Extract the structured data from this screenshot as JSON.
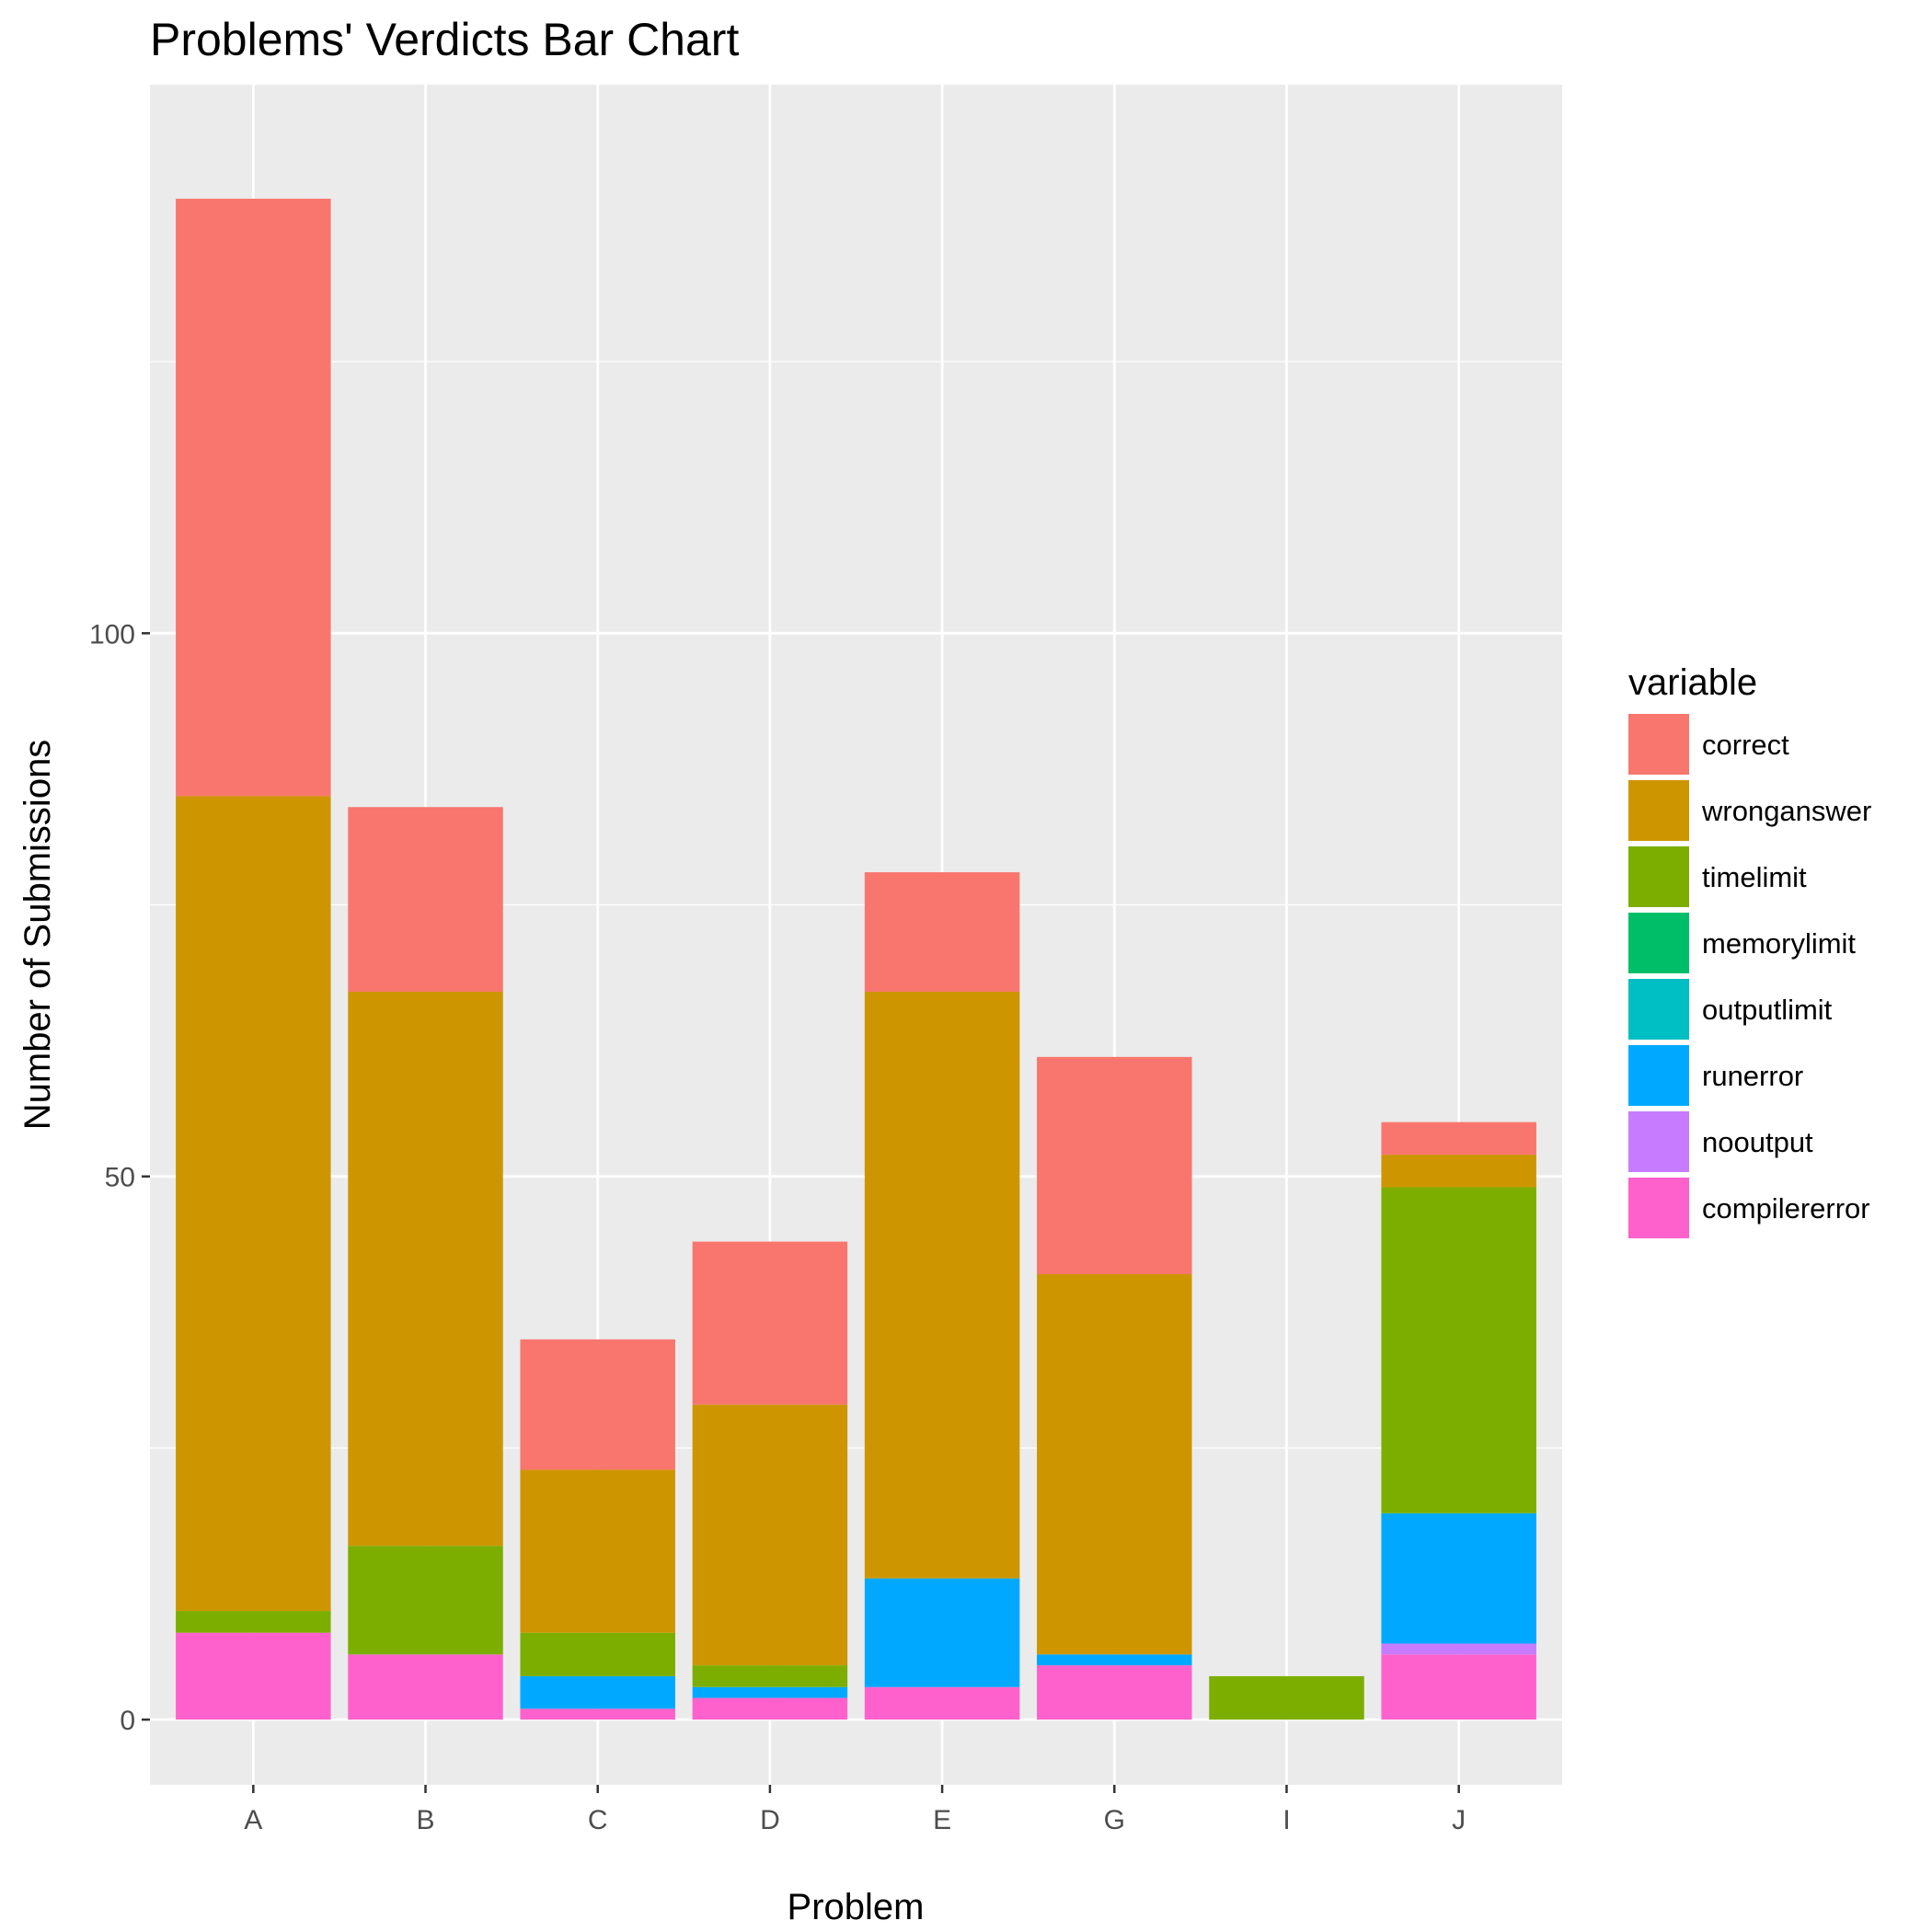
{
  "chart_data": {
    "type": "bar",
    "stacked": true,
    "title": "Problems' Verdicts Bar Chart",
    "xlabel": "Problem",
    "ylabel": "Number of Submissions",
    "categories": [
      "A",
      "B",
      "C",
      "D",
      "E",
      "G",
      "I",
      "J"
    ],
    "ylim": [
      -6,
      150.5
    ],
    "yticks": [
      0,
      50,
      100
    ],
    "yticks_labels": [
      "0",
      "50",
      "100"
    ],
    "grid": true,
    "legend": {
      "title": "variable",
      "position": "right"
    },
    "series": [
      {
        "name": "correct",
        "color": "#F8766D",
        "values": [
          55,
          17,
          12,
          15,
          11,
          20,
          0,
          3
        ]
      },
      {
        "name": "wronganswer",
        "color": "#CD9600",
        "values": [
          75,
          51,
          15,
          24,
          54,
          35,
          0,
          3
        ]
      },
      {
        "name": "timelimit",
        "color": "#7CAE00",
        "values": [
          2,
          10,
          4,
          2,
          0,
          0,
          4,
          30
        ]
      },
      {
        "name": "memorylimit",
        "color": "#00BE67",
        "values": [
          0,
          0,
          0,
          0,
          0,
          0,
          0,
          0
        ]
      },
      {
        "name": "outputlimit",
        "color": "#00BFC4",
        "values": [
          0,
          0,
          0,
          0,
          0,
          0,
          0,
          0
        ]
      },
      {
        "name": "runerror",
        "color": "#00A9FF",
        "values": [
          0,
          0,
          3,
          1,
          10,
          1,
          0,
          12
        ]
      },
      {
        "name": "nooutput",
        "color": "#C77CFF",
        "values": [
          0,
          0,
          0,
          0,
          0,
          0,
          0,
          1
        ]
      },
      {
        "name": "compilererror",
        "color": "#FF61CC",
        "values": [
          8,
          6,
          1,
          2,
          3,
          5,
          0,
          6
        ]
      }
    ]
  }
}
